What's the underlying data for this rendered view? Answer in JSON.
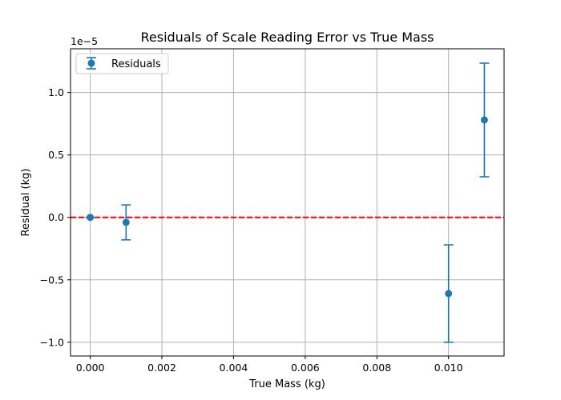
{
  "chart_data": {
    "type": "scatter",
    "title": "Residuals of Scale Reading Error vs True Mass",
    "xlabel": "True Mass (kg)",
    "ylabel": "Residual (kg)",
    "y_offset_label": "1e−5",
    "y_scale": 1e-05,
    "xlim": [
      -0.00055,
      0.01155
    ],
    "ylim": [
      -1.11,
      1.35
    ],
    "x_ticks": [
      0.0,
      0.002,
      0.004,
      0.006,
      0.008,
      0.01
    ],
    "x_tick_labels": [
      "0.000",
      "0.002",
      "0.004",
      "0.006",
      "0.008",
      "0.010"
    ],
    "y_ticks": [
      -1.0,
      -0.5,
      0.0,
      0.5,
      1.0
    ],
    "y_tick_labels": [
      "−1.0",
      "−0.5",
      "0.0",
      "0.5",
      "1.0"
    ],
    "grid": true,
    "legend_position": "upper-left",
    "reference_line": {
      "y": 0,
      "color": "#ff0000",
      "style": "dashed"
    },
    "series": [
      {
        "name": "Residuals",
        "color": "#1f77b4",
        "marker": "circle",
        "points": [
          {
            "x": 0.0,
            "y": 0.0,
            "yerr": 0.0
          },
          {
            "x": 0.001,
            "y": -0.04,
            "yerr": 0.14
          },
          {
            "x": 0.01,
            "y": -0.61,
            "yerr": 0.39
          },
          {
            "x": 0.011,
            "y": 0.78,
            "yerr": 0.455
          }
        ]
      }
    ]
  }
}
